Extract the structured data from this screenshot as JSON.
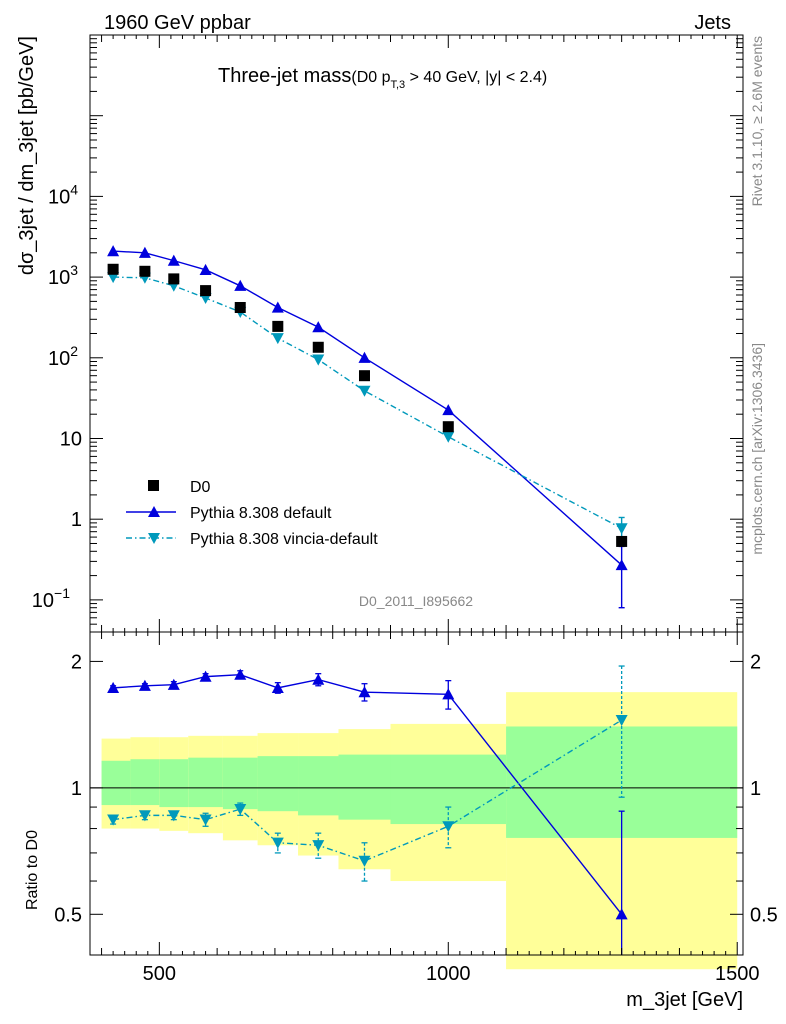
{
  "header": {
    "left": "1960 GeV ppbar",
    "right": "Jets"
  },
  "title": {
    "main": "Three-jet mass",
    "cut_open": "(D0 p",
    "cut_sub": "T,3",
    "cut_close": " > 40 GeV, |y| < 2.4)"
  },
  "side": {
    "rivet": "Rivet 3.1.10, ≥ 2.6M events",
    "mcplots": "mcplots.cern.ch [arXiv:1306.3436]"
  },
  "analysis_id": "D0_2011_I895662",
  "colors": {
    "data": "#000000",
    "default": "#0000dd",
    "vincia": "#0099bb",
    "band_inner": "#99ff99",
    "band_outer": "#ffff99"
  },
  "chart_data": [
    {
      "type": "scatter",
      "panel": "main",
      "ylabel": "dσ_3jet / dm_3jet [pb/GeV]",
      "yscale": "log",
      "xlim": [
        380,
        1510
      ],
      "ylim": [
        0.04,
        1000000
      ],
      "y_ticks": [
        {
          "value": 0.1,
          "base": "10",
          "exp": "−1"
        },
        {
          "value": 1,
          "base": "1",
          "exp": ""
        },
        {
          "value": 10,
          "base": "10",
          "exp": ""
        },
        {
          "value": 100,
          "base": "10",
          "exp": "2"
        },
        {
          "value": 1000,
          "base": "10",
          "exp": "3"
        },
        {
          "value": 10000,
          "base": "10",
          "exp": "4"
        }
      ],
      "legend_position": "bottom-left",
      "series": [
        {
          "name": "D0",
          "marker": "square",
          "x": [
            420,
            475,
            525,
            580,
            640,
            705,
            775,
            855,
            1000,
            1300
          ],
          "y": [
            1250,
            1180,
            950,
            680,
            420,
            245,
            135,
            60,
            14,
            0.53
          ],
          "yerr": [
            0,
            0,
            0,
            0,
            0,
            0,
            0,
            0,
            0,
            0
          ]
        },
        {
          "name": "Pythia 8.308 default",
          "marker": "triangle-up",
          "x": [
            420,
            475,
            525,
            580,
            640,
            705,
            775,
            855,
            1000,
            1300
          ],
          "y": [
            2100,
            2000,
            1600,
            1230,
            780,
            420,
            240,
            100,
            22.5,
            0.27
          ],
          "yerr": [
            0,
            0,
            0,
            0,
            0,
            0,
            0,
            0,
            0,
            0.19
          ]
        },
        {
          "name": "Pythia 8.308 vincia-default",
          "marker": "triangle-down",
          "x": [
            420,
            475,
            525,
            580,
            640,
            705,
            775,
            855,
            1000,
            1300
          ],
          "y": [
            1000,
            980,
            780,
            550,
            370,
            175,
            95,
            39,
            10.5,
            0.77
          ],
          "yerr": [
            0,
            0,
            0,
            0,
            0,
            0,
            0,
            0,
            0,
            0.28
          ]
        }
      ]
    },
    {
      "type": "scatter",
      "panel": "ratio",
      "xlabel": "m_3jet [GeV]",
      "ylabel": "Ratio to D0",
      "xlim": [
        380,
        1510
      ],
      "ylim": [
        0.4,
        2.35
      ],
      "x_ticks": [
        500,
        1000,
        1500
      ],
      "y_ticks": [
        0.5,
        1,
        2
      ],
      "reference_line": 1,
      "bands": [
        {
          "x0": 400,
          "x1": 450,
          "inner": [
            0.91,
            1.16
          ],
          "outer": [
            0.8,
            1.31
          ]
        },
        {
          "x0": 450,
          "x1": 500,
          "inner": [
            0.91,
            1.17
          ],
          "outer": [
            0.8,
            1.32
          ]
        },
        {
          "x0": 500,
          "x1": 550,
          "inner": [
            0.9,
            1.17
          ],
          "outer": [
            0.79,
            1.32
          ]
        },
        {
          "x0": 550,
          "x1": 610,
          "inner": [
            0.9,
            1.18
          ],
          "outer": [
            0.78,
            1.33
          ]
        },
        {
          "x0": 610,
          "x1": 670,
          "inner": [
            0.89,
            1.18
          ],
          "outer": [
            0.75,
            1.33
          ]
        },
        {
          "x0": 670,
          "x1": 740,
          "inner": [
            0.88,
            1.19
          ],
          "outer": [
            0.73,
            1.35
          ]
        },
        {
          "x0": 740,
          "x1": 810,
          "inner": [
            0.86,
            1.19
          ],
          "outer": [
            0.69,
            1.35
          ]
        },
        {
          "x0": 810,
          "x1": 900,
          "inner": [
            0.84,
            1.2
          ],
          "outer": [
            0.64,
            1.38
          ]
        },
        {
          "x0": 900,
          "x1": 1100,
          "inner": [
            0.82,
            1.2
          ],
          "outer": [
            0.6,
            1.42
          ]
        },
        {
          "x0": 1100,
          "x1": 1500,
          "inner": [
            0.76,
            1.4
          ],
          "outer": [
            0.37,
            1.69
          ]
        }
      ],
      "series": [
        {
          "name": "Pythia 8.308 default",
          "x": [
            420,
            475,
            525,
            580,
            640,
            705,
            775,
            855,
            1000,
            1300
          ],
          "y": [
            1.73,
            1.75,
            1.76,
            1.84,
            1.86,
            1.73,
            1.81,
            1.69,
            1.67,
            0.5
          ],
          "yerr": [
            0.02,
            0.02,
            0.03,
            0.03,
            0.04,
            0.05,
            0.06,
            0.08,
            0.13,
            0.38
          ]
        },
        {
          "name": "Pythia 8.308 vincia-default",
          "x": [
            420,
            475,
            525,
            580,
            640,
            705,
            775,
            855,
            1000,
            1300
          ],
          "y": [
            0.84,
            0.86,
            0.86,
            0.84,
            0.89,
            0.74,
            0.73,
            0.67,
            0.81,
            1.45
          ],
          "yerr": [
            0.02,
            0.02,
            0.02,
            0.03,
            0.03,
            0.04,
            0.05,
            0.07,
            0.09,
            0.5
          ]
        }
      ]
    }
  ]
}
